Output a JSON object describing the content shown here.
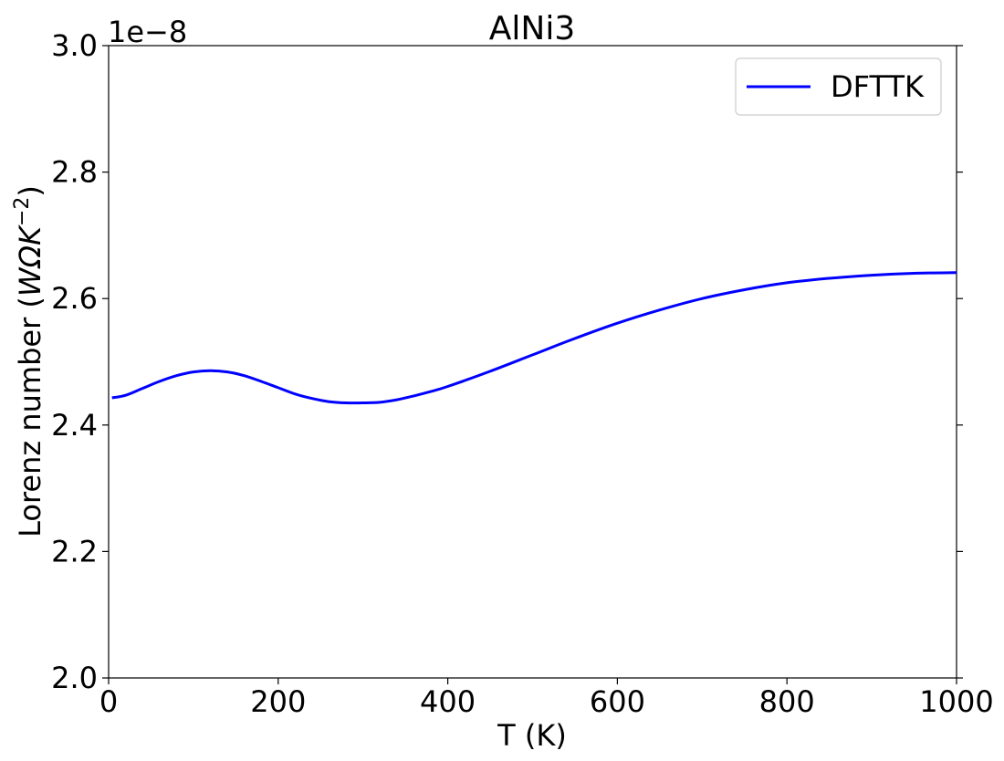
{
  "chart_data": {
    "type": "line",
    "title": "AlNi3",
    "xlabel": "T (K)",
    "ylabel_text": "Lorenz number (",
    "ylabel_math": "WΩK",
    "ylabel_sup": "−2",
    "ylabel_close": ")",
    "offset_label": "1e−8",
    "xlim": [
      0,
      1000
    ],
    "ylim": [
      2.0,
      3.0
    ],
    "xticks": [
      0,
      200,
      400,
      600,
      800,
      1000
    ],
    "xtick_labels": [
      "0",
      "200",
      "400",
      "600",
      "800",
      "1000"
    ],
    "yticks": [
      2.0,
      2.2,
      2.4,
      2.6,
      2.8,
      3.0
    ],
    "ytick_labels": [
      "2.0",
      "2.2",
      "2.4",
      "2.6",
      "2.8",
      "3.0"
    ],
    "grid": false,
    "legend_position": "top-right",
    "series": [
      {
        "name": "DFTTK",
        "color": "#0000ff",
        "x": [
          4,
          20,
          40,
          60,
          80,
          100,
          120,
          140,
          160,
          180,
          200,
          220,
          240,
          260,
          280,
          300,
          320,
          340,
          360,
          380,
          400,
          450,
          500,
          550,
          600,
          650,
          700,
          750,
          800,
          850,
          900,
          950,
          1000
        ],
        "y": [
          2.443,
          2.447,
          2.458,
          2.469,
          2.478,
          2.484,
          2.486,
          2.484,
          2.478,
          2.469,
          2.459,
          2.449,
          2.442,
          2.437,
          2.435,
          2.435,
          2.436,
          2.44,
          2.446,
          2.453,
          2.461,
          2.485,
          2.511,
          2.537,
          2.561,
          2.582,
          2.6,
          2.614,
          2.625,
          2.632,
          2.637,
          2.64,
          2.641
        ]
      }
    ]
  }
}
